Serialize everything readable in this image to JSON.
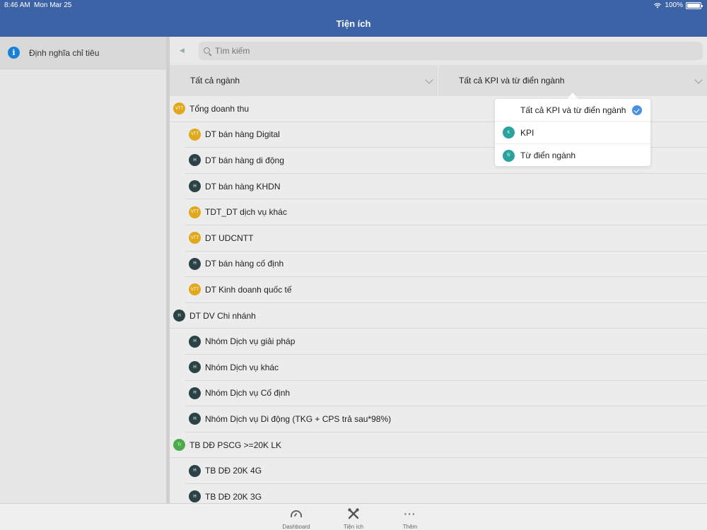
{
  "status_bar": {
    "time": "8:46 AM",
    "date": "Mon Mar 25",
    "battery": "100%",
    "battery_level": 1.0
  },
  "nav": {
    "title": "Tiện ích"
  },
  "sidebar": {
    "items": [
      {
        "label": "Định nghĩa chỉ tiêu",
        "icon": "info-icon"
      }
    ]
  },
  "search": {
    "placeholder": "Tìm kiếm",
    "value": ""
  },
  "filters": {
    "industry": "Tất cả ngành",
    "kpi": "Tất cả KPI và từ điển ngành"
  },
  "dropdown": {
    "options": [
      {
        "label": "Tất cả KPI và từ điển ngành",
        "badge": "",
        "selected": true
      },
      {
        "label": "KPI",
        "badge": "K",
        "selected": false
      },
      {
        "label": "Từ điển ngành",
        "badge": "Đ",
        "selected": false
      }
    ]
  },
  "list": {
    "rows": [
      {
        "label": "Tổng doanh thu",
        "badge": "VTT",
        "level": 0
      },
      {
        "label": "DT bán hàng Digital",
        "badge": "VTT",
        "level": 1
      },
      {
        "label": "DT bán hàng di động",
        "badge": "H",
        "level": 1
      },
      {
        "label": "DT bán hàng KHDN",
        "badge": "H",
        "level": 1
      },
      {
        "label": "TDT_DT dịch vụ khác",
        "badge": "VTT",
        "level": 1
      },
      {
        "label": "DT UDCNTT",
        "badge": "VTT",
        "level": 1
      },
      {
        "label": "DT bán hàng cố định",
        "badge": "H",
        "level": 1
      },
      {
        "label": "DT Kinh doanh quốc tế",
        "badge": "VTT",
        "level": 1
      },
      {
        "label": "DT DV Chi nhánh",
        "badge": "H",
        "level": 0
      },
      {
        "label": "Nhóm Dịch vụ giải pháp",
        "badge": "H",
        "level": 1
      },
      {
        "label": "Nhóm Dịch vụ khác",
        "badge": "H",
        "level": 1
      },
      {
        "label": "Nhóm Dịch vụ Cố định",
        "badge": "H",
        "level": 1
      },
      {
        "label": "Nhóm Dịch vụ Di động (TKG + CPS trả sau*98%)",
        "badge": "H",
        "level": 1
      },
      {
        "label": "TB DĐ PSCG >=20K LK",
        "badge": "Tr",
        "level": 0
      },
      {
        "label": "TB DĐ 20K 4G",
        "badge": "H",
        "level": 1
      },
      {
        "label": "TB DĐ 20K 3G",
        "badge": "H",
        "level": 1
      }
    ]
  },
  "tabbar": {
    "tabs": [
      {
        "label": "Dashboard",
        "icon": "dashboard-icon"
      },
      {
        "label": "Tiện ích",
        "icon": "tools-icon"
      },
      {
        "label": "Thêm",
        "icon": "more-icon"
      }
    ]
  },
  "colors": {
    "nav_bar": "#3c63a6",
    "badge_vtt": "#e0a81a",
    "badge_h": "#2b4346",
    "badge_tr": "#4bab4b",
    "badge_dropdown": "#2aa39c",
    "selected_check": "#4a90e2",
    "info_icon": "#1a7fd6"
  }
}
